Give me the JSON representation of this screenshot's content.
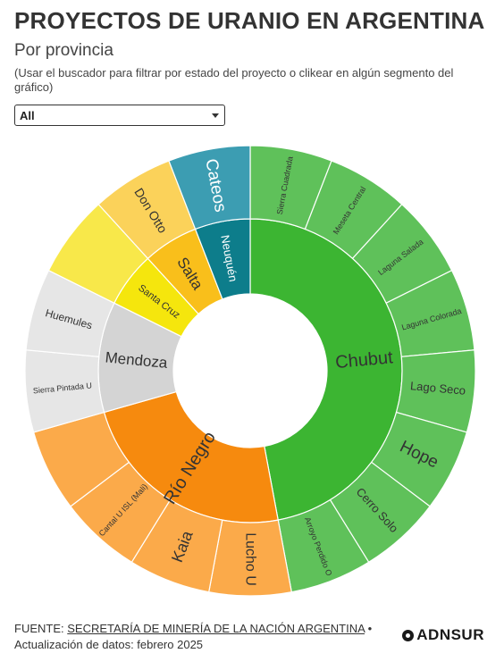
{
  "header": {
    "title": "PROYECTOS DE URANIO EN ARGENTINA",
    "subtitle": "Por provincia",
    "hint": "(Usar el buscador para filtrar por estado del proyecto o clikear en algún segmento del gráfico)"
  },
  "filter": {
    "selected": "All"
  },
  "footer": {
    "source_prefix": "FUENTE:",
    "source_link": "SECRETARÍA DE MINERÍA DE LA NACIÓN ARGENTINA",
    "separator": "•",
    "updated": "Actualización de datos: febrero 2025",
    "logo": "ADNSUR"
  },
  "chart_data": {
    "type": "sunburst",
    "provinces": [
      {
        "name": "Chubut",
        "color": "#3cb532",
        "outer_color": "#5fc15a",
        "projects": [
          "Sierra Cuadrada",
          "Meseta Central",
          "Laguna Salada",
          "Laguna Colorada",
          "Lago Seco",
          "Hope",
          "Cerro Solo",
          "Arroyo Perdido O"
        ]
      },
      {
        "name": "Río Negro",
        "color": "#f68a0e",
        "outer_color": "#fbaa4a",
        "projects": [
          "Lucho U",
          "Kaia",
          "Cantal U ISL (Mali)",
          ""
        ]
      },
      {
        "name": "Mendoza",
        "color": "#d4d4d4",
        "outer_color": "#e6e6e6",
        "projects": [
          "Sierra Pintada U",
          "Huemules"
        ]
      },
      {
        "name": "Santa Cruz",
        "color": "#f5e60d",
        "outer_color": "#f8e84a",
        "projects": [
          ""
        ]
      },
      {
        "name": "Salta",
        "color": "#f9bf1b",
        "outer_color": "#fbd25a",
        "projects": [
          "Don Otto"
        ]
      },
      {
        "name": "Neuquén",
        "color": "#0d7d8b",
        "outer_color": "#3c9db2",
        "projects": [
          "Cateos"
        ]
      }
    ]
  }
}
